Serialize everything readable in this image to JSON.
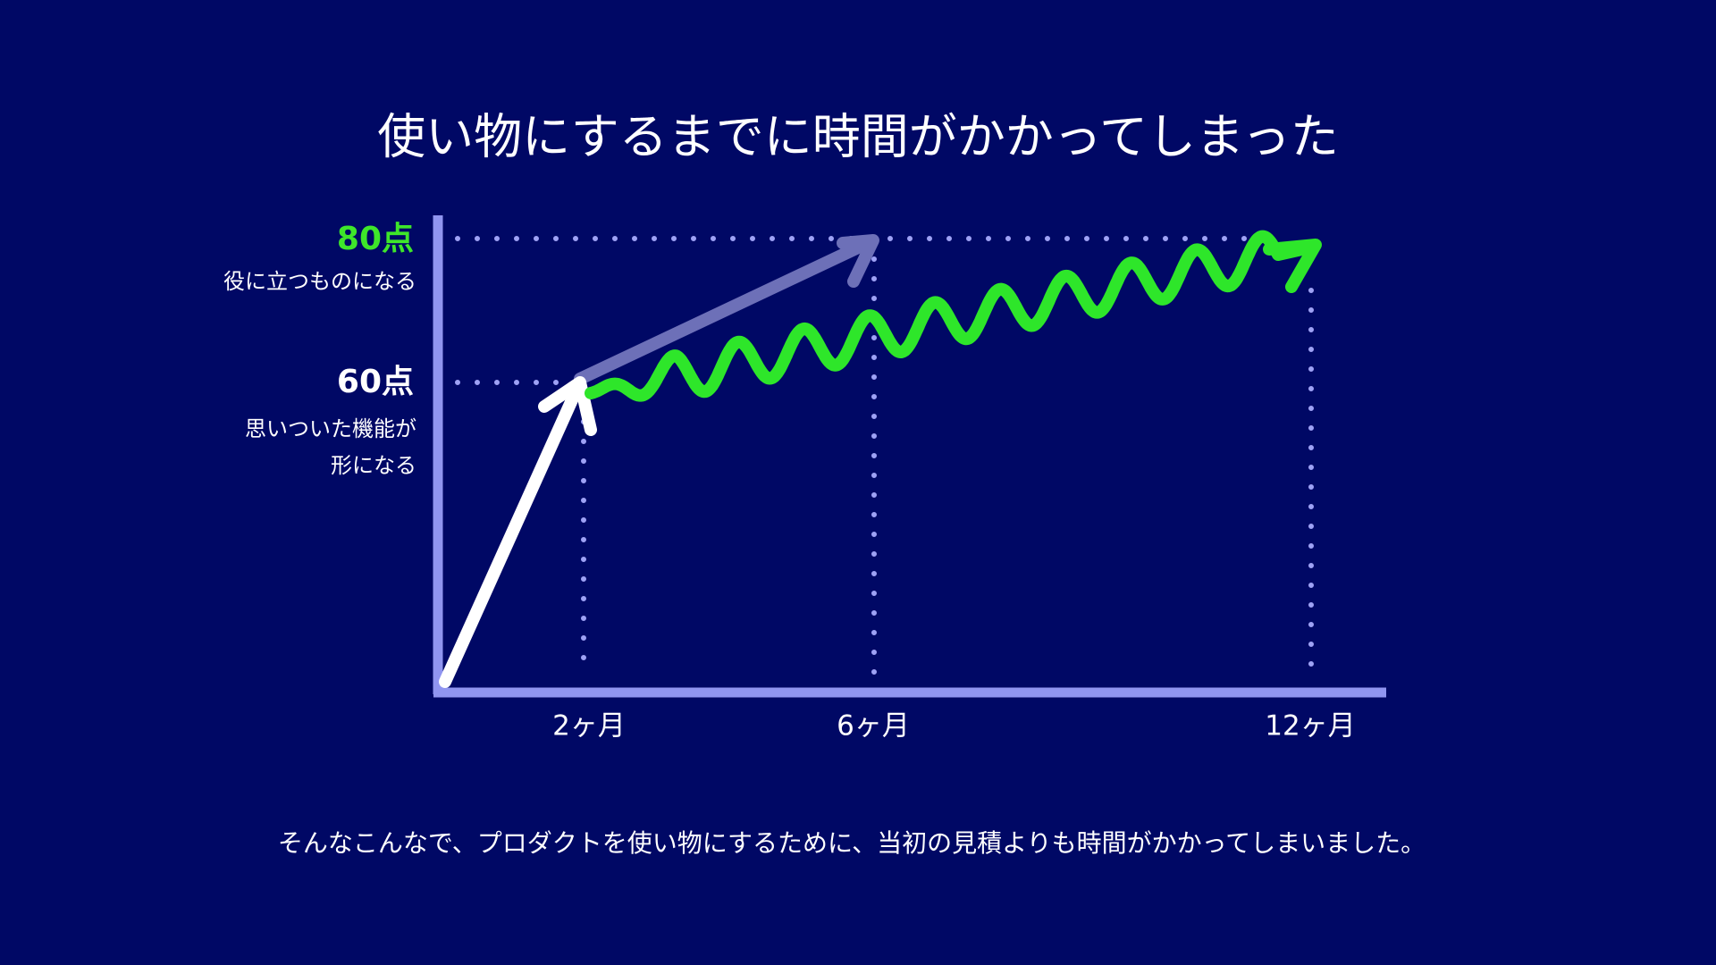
{
  "title": "使い物にするまでに時間がかかってしまった",
  "y_labels": [
    {
      "score": "80点",
      "caption": [
        "役に立つものになる"
      ]
    },
    {
      "score": "60点",
      "caption": [
        "思いついた機能が",
        "形になる"
      ]
    }
  ],
  "x_labels": [
    "2ヶ月",
    "6ヶ月",
    "12ヶ月"
  ],
  "footer": "そんなこんなで、プロダクトを使い物にするために、当初の見積よりも時間がかかってしまいました。"
}
